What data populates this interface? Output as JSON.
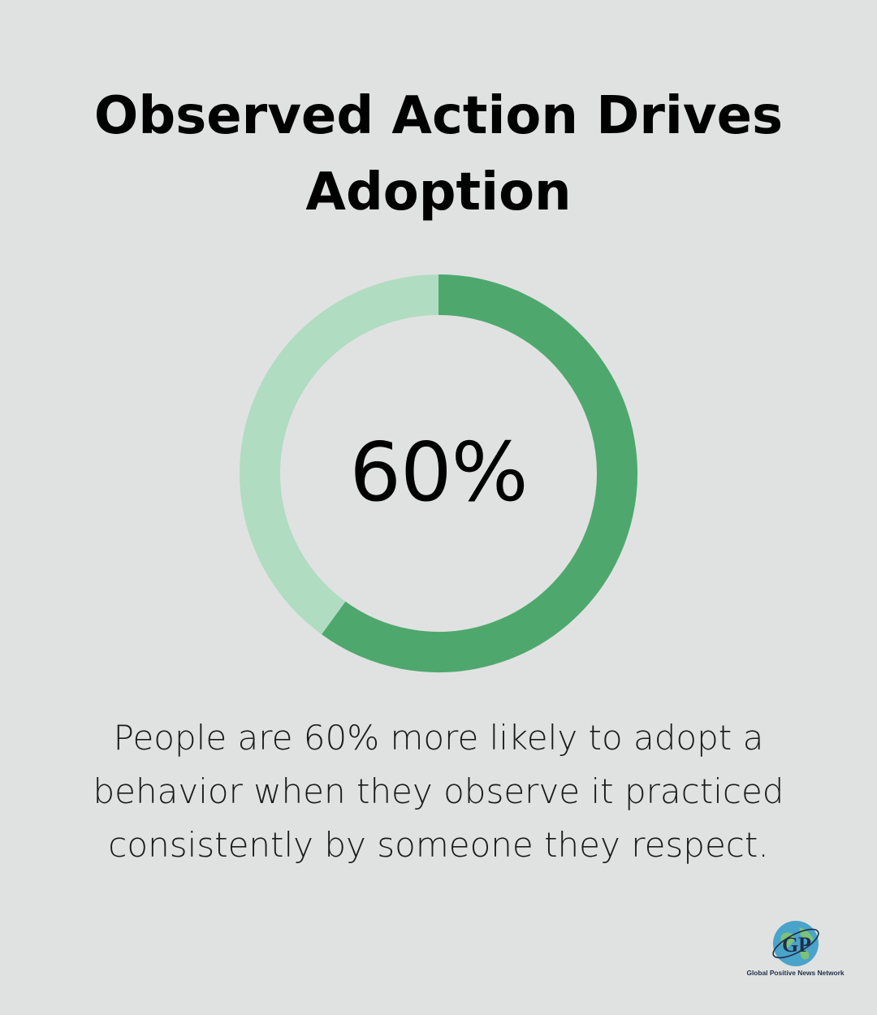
{
  "title": {
    "line1": "Observed Action Drives",
    "line2": "Adoption"
  },
  "chart_data": {
    "type": "pie",
    "title": "Observed Action Drives Adoption",
    "center_label": "60%",
    "slices": [
      {
        "value": 60,
        "color": "#4ea86e"
      },
      {
        "value": 40,
        "color": "#b0dcc1"
      }
    ]
  },
  "caption": {
    "line1": "People are 60% more likely to adopt a",
    "line2": "behavior when they observe it practiced",
    "line3": "consistently by someone they respect."
  },
  "logo": {
    "monogram_left": "G",
    "monogram_right": "P",
    "name": "Global Positive News Network",
    "icon": "globe-icon"
  },
  "colors": {
    "background": "#e0e2e1",
    "accent": "#4ea86e",
    "accent_light": "#b0dcc1"
  }
}
